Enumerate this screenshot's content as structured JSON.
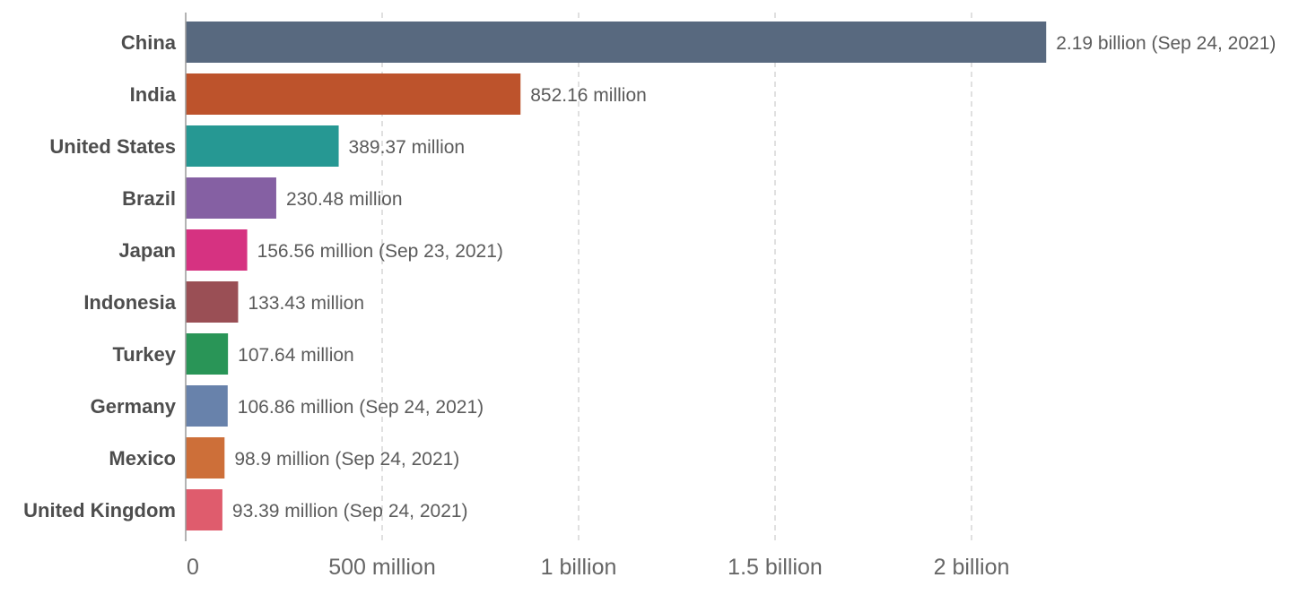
{
  "chart_data": {
    "type": "bar",
    "orientation": "horizontal",
    "categories": [
      "China",
      "India",
      "United States",
      "Brazil",
      "Japan",
      "Indonesia",
      "Turkey",
      "Germany",
      "Mexico",
      "United Kingdom"
    ],
    "values": [
      2190000000,
      852160000,
      389370000,
      230480000,
      156560000,
      133430000,
      107640000,
      106860000,
      98900000,
      93390000
    ],
    "value_labels": [
      "2.19 billion (Sep 24, 2021)",
      "852.16 million",
      "389.37 million",
      "230.48 million",
      "156.56 million (Sep 23, 2021)",
      "133.43 million",
      "107.64 million",
      "106.86 million (Sep 24, 2021)",
      "98.9 million (Sep 24, 2021)",
      "93.39 million (Sep 24, 2021)"
    ],
    "colors": [
      "#58697f",
      "#bd532c",
      "#269893",
      "#8560a3",
      "#d63281",
      "#9a4f55",
      "#299557",
      "#6882ab",
      "#cd6f39",
      "#df5c6d"
    ],
    "xlim": [
      0,
      2190000000
    ],
    "xticks": [
      0,
      500000000,
      1000000000,
      1500000000,
      2000000000
    ],
    "xtick_labels": [
      "0",
      "500 million",
      "1 billion",
      "1.5 billion",
      "2 billion"
    ],
    "grid": "vertical dashed",
    "title": "",
    "xlabel": "",
    "ylabel": ""
  }
}
